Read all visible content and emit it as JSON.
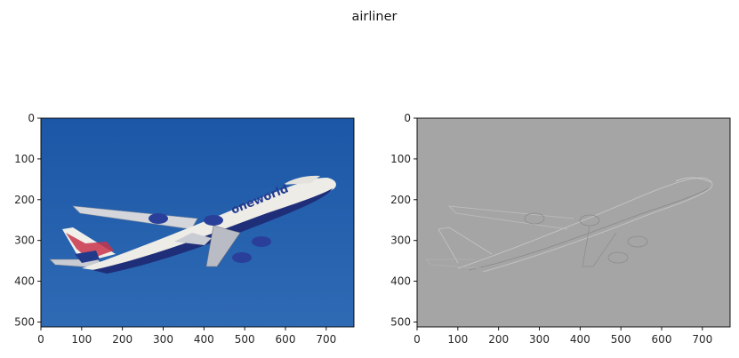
{
  "figure": {
    "title": "airliner"
  },
  "chart_data": [
    {
      "type": "image",
      "content": "photo of a Boeing 747 airliner in oneworld livery climbing against a blue sky",
      "xlim": [
        0,
        768
      ],
      "ylim": [
        512,
        0
      ],
      "xticks": [
        0,
        100,
        200,
        300,
        400,
        500,
        600,
        700
      ],
      "yticks": [
        0,
        100,
        200,
        300,
        400,
        500
      ],
      "livery_text": "oneworld"
    },
    {
      "type": "image",
      "content": "grayscale edge / gradient map of the same airliner photo",
      "xlim": [
        0,
        768
      ],
      "ylim": [
        512,
        0
      ],
      "xticks": [
        0,
        100,
        200,
        300,
        400,
        500,
        600,
        700
      ],
      "yticks": [
        0,
        100,
        200,
        300,
        400,
        500
      ]
    }
  ],
  "colors": {
    "sky_top": "#1d5aa8",
    "sky_bottom": "#2b66b3",
    "fuselage": "#eeece6",
    "belly": "#1f2e78",
    "edge_bg": "#a5a5a5"
  }
}
